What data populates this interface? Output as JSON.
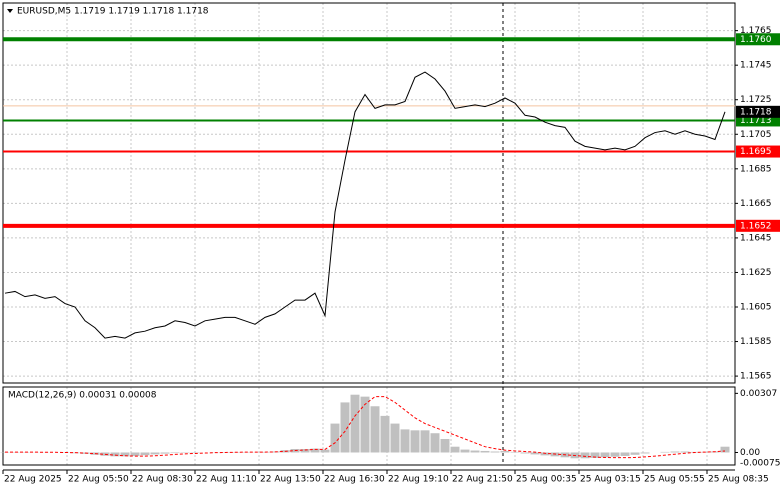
{
  "chart_data": {
    "type": "line",
    "title": "EURUSD,M5  1.1719 1.1719 1.1718 1.1718",
    "x_labels": [
      "22 Aug 2025",
      "22 Aug 05:50",
      "22 Aug 08:30",
      "22 Aug 11:10",
      "22 Aug 13:50",
      "22 Aug 16:30",
      "22 Aug 19:10",
      "22 Aug 21:50",
      "25 Aug 00:35",
      "25 Aug 03:15",
      "25 Aug 05:55",
      "25 Aug 08:35"
    ],
    "series": [
      {
        "name": "EURUSD",
        "color": "#000000",
        "values": [
          1.1613,
          1.1614,
          1.1611,
          1.1612,
          1.161,
          1.1611,
          1.1607,
          1.1605,
          1.1597,
          1.1593,
          1.1587,
          1.1588,
          1.1587,
          1.159,
          1.1591,
          1.1593,
          1.1594,
          1.1597,
          1.1596,
          1.1594,
          1.1597,
          1.1598,
          1.1599,
          1.1599,
          1.1597,
          1.1595,
          1.1599,
          1.1601,
          1.1605,
          1.1609,
          1.1609,
          1.1613,
          1.16,
          1.166,
          1.169,
          1.1718,
          1.1728,
          1.172,
          1.1722,
          1.1722,
          1.1724,
          1.1738,
          1.1741,
          1.1737,
          1.173,
          1.172,
          1.1721,
          1.1722,
          1.1721,
          1.1723,
          1.1726,
          1.1723,
          1.1716,
          1.1715,
          1.1712,
          1.171,
          1.1709,
          1.1701,
          1.1698,
          1.1697,
          1.1696,
          1.1697,
          1.1696,
          1.1698,
          1.1703,
          1.1706,
          1.1707,
          1.1705,
          1.1707,
          1.1705,
          1.1704,
          1.1702,
          1.1718
        ]
      }
    ],
    "ylim": [
      1.1561,
      1.1781
    ],
    "yticks": [
      1.1765,
      1.1745,
      1.1725,
      1.1705,
      1.1685,
      1.1665,
      1.1645,
      1.1625,
      1.1605,
      1.1585,
      1.1565
    ],
    "grid": true,
    "levels": [
      {
        "value": 1.176,
        "label": "1.1760",
        "color": "#008000"
      },
      {
        "value": 1.1713,
        "color": "#008000"
      },
      {
        "value": 1.1695,
        "color": "#ff0000"
      },
      {
        "value": 1.1652,
        "color": "#ff0000"
      }
    ],
    "current_price": 1.1718,
    "macd": {
      "title": "MACD(12,26,9) 0.00031 0.00008",
      "histogram": {
        "color": "#c0c0c0",
        "values": [
          2e-05,
          2e-05,
          2e-05,
          1e-05,
          1e-05,
          0,
          -2e-05,
          -4e-05,
          -7e-05,
          -0.00012,
          -0.00017,
          -0.0002,
          -0.0002,
          -0.00018,
          -0.00014,
          -0.0001,
          -6e-05,
          -3e-05,
          -2e-05,
          -2e-05,
          0,
          1e-05,
          2e-05,
          2e-05,
          2e-05,
          1e-05,
          3e-05,
          5e-05,
          0.00012,
          0.00018,
          0.00018,
          0.0002,
          0.00015,
          0.0015,
          0.0026,
          0.003,
          0.0029,
          0.0024,
          0.0019,
          0.0015,
          0.0012,
          0.00115,
          0.00115,
          0.001,
          0.0007,
          0.0003,
          0.00015,
          0.0001,
          8e-05,
          5e-05,
          8e-05,
          3e-05,
          -5e-05,
          -0.0001,
          -0.00015,
          -0.0002,
          -0.00025,
          -0.0003,
          -0.0003,
          -0.00028,
          -0.00025,
          -0.00022,
          -0.00018,
          -0.00012,
          -5e-05,
          0,
          3e-05,
          5e-05,
          5e-05,
          3e-05,
          3e-05,
          5e-05,
          0.0003
        ]
      },
      "signal": {
        "color": "#ff0000",
        "values": [
          2e-05,
          2e-05,
          2e-05,
          2e-05,
          1e-05,
          1e-05,
          0,
          -1e-05,
          -3e-05,
          -6e-05,
          -0.0001,
          -0.00014,
          -0.00017,
          -0.00019,
          -0.00019,
          -0.00017,
          -0.00014,
          -0.0001,
          -7e-05,
          -5e-05,
          -3e-05,
          -1e-05,
          0,
          1e-05,
          2e-05,
          2e-05,
          2e-05,
          3e-05,
          6e-05,
          0.0001,
          0.00013,
          0.00016,
          0.00016,
          0.0005,
          0.0011,
          0.0019,
          0.0025,
          0.0029,
          0.0029,
          0.0026,
          0.0022,
          0.0018,
          0.0015,
          0.0013,
          0.0011,
          0.0009,
          0.0007,
          0.0005,
          0.0003,
          0.0002,
          0.00012,
          8e-05,
          5e-05,
          2e-05,
          -4e-05,
          -8e-05,
          -0.00012,
          -0.00016,
          -0.0002,
          -0.00024,
          -0.00026,
          -0.00027,
          -0.00027,
          -0.00026,
          -0.00023,
          -0.00019,
          -0.00014,
          -9e-05,
          -4e-05,
          0,
          2e-05,
          4e-05,
          8e-05
        ]
      },
      "ylim": [
        -0.00065,
        0.0034
      ],
      "yticks": [
        0.00307,
        {
          "value": 0,
          "label": "0.00"
        },
        -0.00075
      ]
    }
  }
}
